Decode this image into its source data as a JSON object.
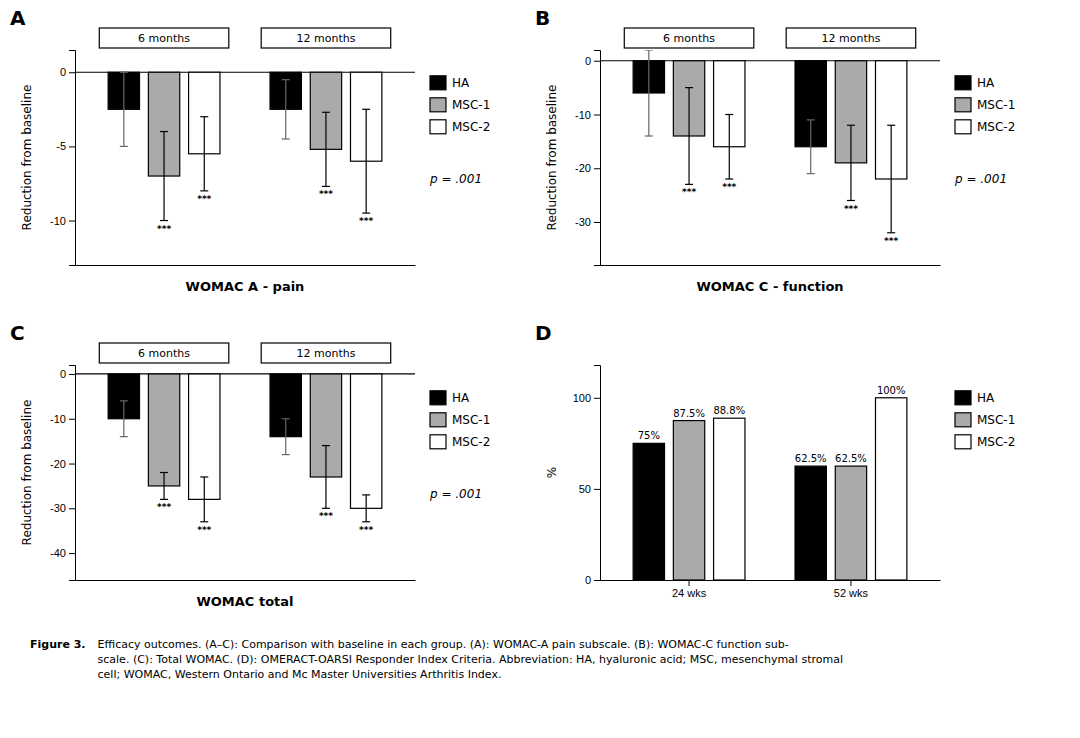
{
  "chart_data": [
    {
      "type": "bar",
      "title": "A",
      "xlabel": "WOMAC A - pain",
      "ylabel": "Reduction from baseline",
      "categories": [
        "6 months",
        "12 months"
      ],
      "series": [
        {
          "name": "HA",
          "color": "#000000",
          "values": [
            -2.5,
            -2.5
          ],
          "errors": [
            2.5,
            2.0
          ]
        },
        {
          "name": "MSC-1",
          "color": "#aaaaaa",
          "values": [
            -7.0,
            -5.2
          ],
          "errors": [
            3.0,
            2.5
          ]
        },
        {
          "name": "MSC-2",
          "color": "#ffffff",
          "values": [
            -5.5,
            -6.0
          ],
          "errors": [
            2.5,
            3.5
          ]
        }
      ],
      "annotations": [
        {
          "text": "***",
          "series": "MSC-1",
          "category": "6 months"
        },
        {
          "text": "***",
          "series": "MSC-2",
          "category": "6 months"
        },
        {
          "text": "***",
          "series": "MSC-1",
          "category": "12 months"
        },
        {
          "text": "***",
          "series": "MSC-2",
          "category": "12 months"
        },
        {
          "text": "p = .001"
        }
      ],
      "ylim": [
        -13,
        1.5
      ],
      "yticks": [
        0,
        -5,
        -10
      ],
      "grid": false,
      "legend": "right"
    },
    {
      "type": "bar",
      "title": "B",
      "xlabel": "WOMAC C - function",
      "ylabel": "Reduction from baseline",
      "categories": [
        "6 months",
        "12 months"
      ],
      "series": [
        {
          "name": "HA",
          "color": "#000000",
          "values": [
            -6.0,
            -16.0
          ],
          "errors": [
            8.0,
            5.0
          ]
        },
        {
          "name": "MSC-1",
          "color": "#aaaaaa",
          "values": [
            -14.0,
            -19.0
          ],
          "errors": [
            9.0,
            7.0
          ]
        },
        {
          "name": "MSC-2",
          "color": "#ffffff",
          "values": [
            -16.0,
            -22.0
          ],
          "errors": [
            6.0,
            10.0
          ]
        }
      ],
      "annotations": [
        {
          "text": "***",
          "series": "MSC-1",
          "category": "6 months"
        },
        {
          "text": "***",
          "series": "MSC-2",
          "category": "6 months"
        },
        {
          "text": "***",
          "series": "MSC-1",
          "category": "12 months"
        },
        {
          "text": "***",
          "series": "MSC-2",
          "category": "12 months"
        },
        {
          "text": "p = .001"
        }
      ],
      "ylim": [
        -38,
        2
      ],
      "yticks": [
        0,
        -10,
        -20,
        -30
      ],
      "grid": false,
      "legend": "right"
    },
    {
      "type": "bar",
      "title": "C",
      "xlabel": "WOMAC total",
      "ylabel": "Reduction from baseline",
      "categories": [
        "6 months",
        "12 months"
      ],
      "series": [
        {
          "name": "HA",
          "color": "#000000",
          "values": [
            -10.0,
            -14.0
          ],
          "errors": [
            4.0,
            4.0
          ]
        },
        {
          "name": "MSC-1",
          "color": "#aaaaaa",
          "values": [
            -25.0,
            -23.0
          ],
          "errors": [
            3.0,
            7.0
          ]
        },
        {
          "name": "MSC-2",
          "color": "#ffffff",
          "values": [
            -28.0,
            -30.0
          ],
          "errors": [
            5.0,
            3.0
          ]
        }
      ],
      "annotations": [
        {
          "text": "***",
          "series": "MSC-1",
          "category": "6 months"
        },
        {
          "text": "***",
          "series": "MSC-2",
          "category": "6 months"
        },
        {
          "text": "***",
          "series": "MSC-1",
          "category": "12 months"
        },
        {
          "text": "***",
          "series": "MSC-2",
          "category": "12 months"
        },
        {
          "text": "p = .001"
        }
      ],
      "ylim": [
        -46,
        2
      ],
      "yticks": [
        0,
        -10,
        -20,
        -30,
        -40
      ],
      "grid": false,
      "legend": "right"
    },
    {
      "type": "bar",
      "title": "D",
      "ylabel": "%",
      "categories": [
        "24 wks",
        "52 wks"
      ],
      "series": [
        {
          "name": "HA",
          "color": "#000000",
          "values": [
            75.0,
            62.5
          ],
          "value_labels": [
            "75%",
            "62.5%"
          ]
        },
        {
          "name": "MSC-1",
          "color": "#aaaaaa",
          "values": [
            87.5,
            62.5
          ],
          "value_labels": [
            "87.5%",
            "62.5%"
          ]
        },
        {
          "name": "MSC-2",
          "color": "#ffffff",
          "values": [
            88.8,
            100.0
          ],
          "value_labels": [
            "88.8%",
            "100%"
          ]
        }
      ],
      "data_labels": true,
      "ylim": [
        0,
        118
      ],
      "yticks": [
        0,
        50,
        100
      ],
      "grid": false,
      "legend": "right"
    }
  ],
  "caption_title": "Figure 3.",
  "caption": [
    "Efficacy outcomes. (A–C): Comparison with baseline in each group. (A): WOMAC-A pain subscale. (B): WOMAC-C function sub-",
    "scale. (C): Total WOMAC. (D): OMERACT-OARSI Responder Index Criteria. Abbreviation: HA, hyaluronic acid; MSC, mesenchymal stromal",
    "cell; WOMAC, Western Ontario and Mc Master Universities Arthritis Index."
  ]
}
